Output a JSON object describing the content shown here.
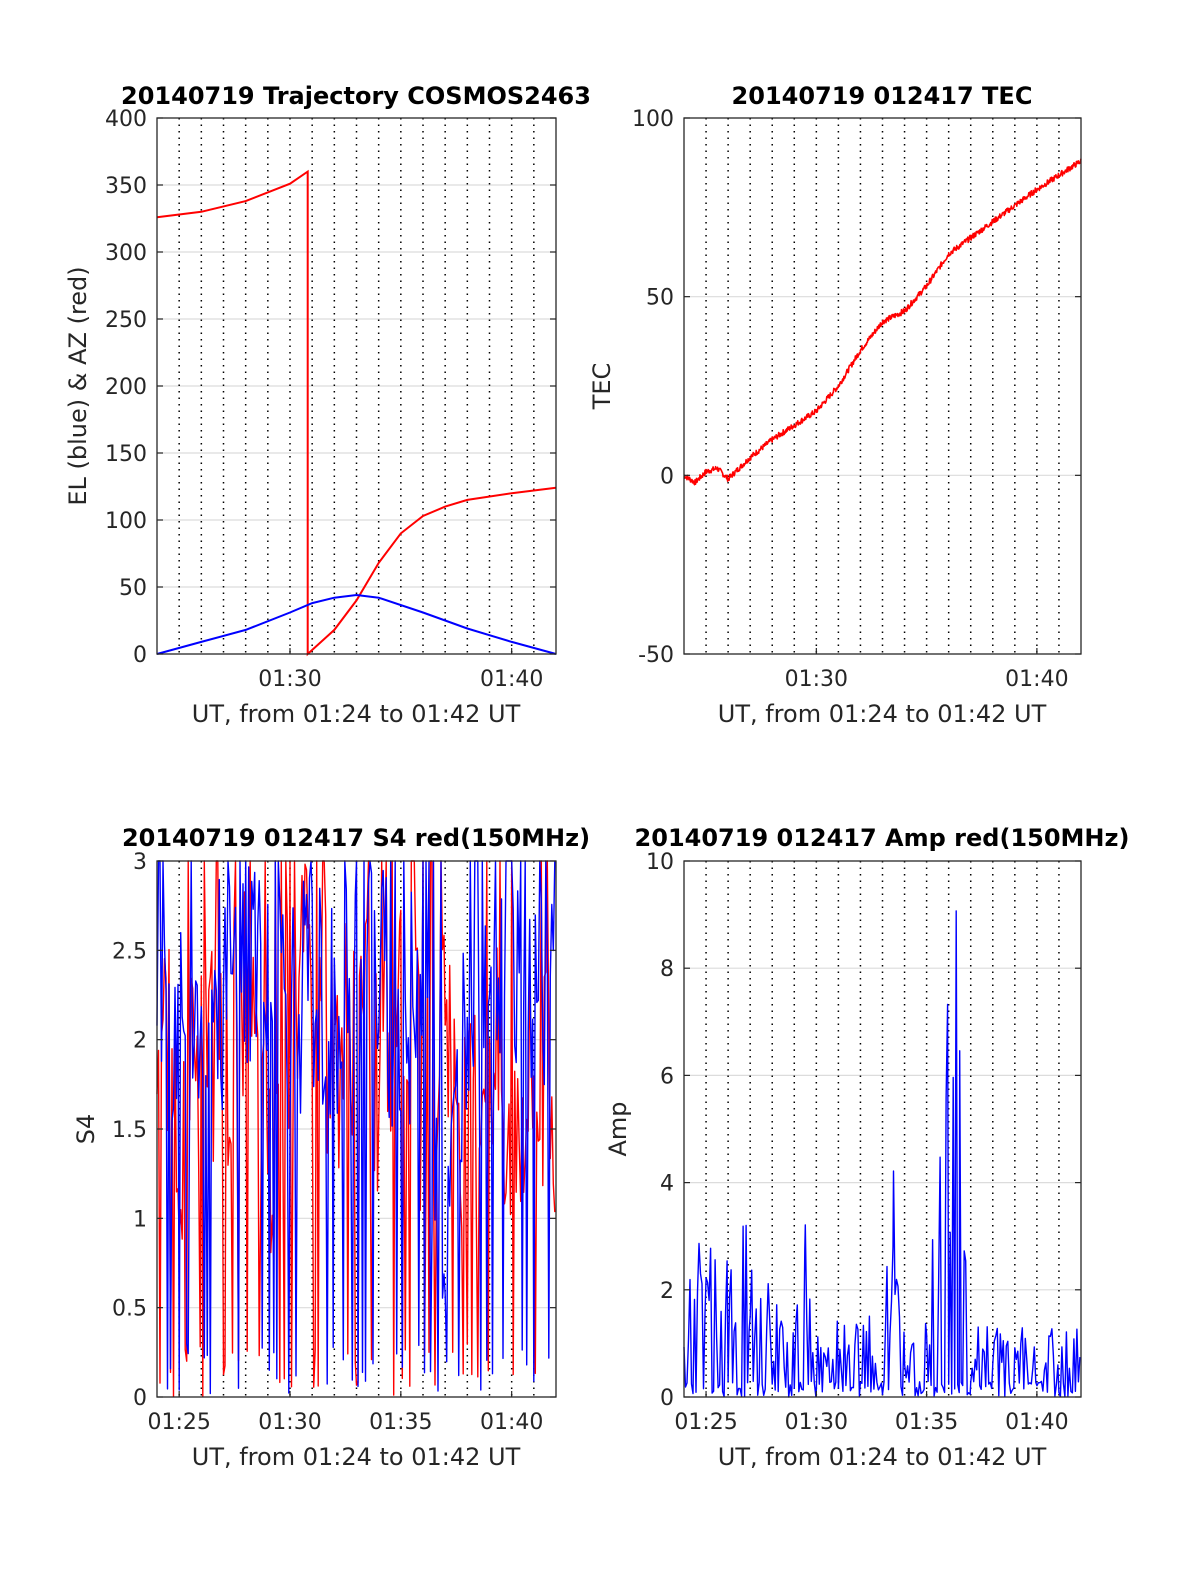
{
  "chart_data": [
    {
      "type": "line",
      "title": "20140719 Trajectory COSMOS2463",
      "xlabel": "UT, from 01:24 to 01:42 UT",
      "ylabel": "EL (blue) & AZ (red)",
      "xlim": [
        "01:24",
        "01:42"
      ],
      "ylim": [
        0,
        400
      ],
      "xticks": [
        "01:30",
        "01:40"
      ],
      "yticks": [
        "0",
        "50",
        "100",
        "150",
        "200",
        "250",
        "300",
        "350",
        "400"
      ],
      "grid": "horizontal solid, vertical dotted",
      "series": [
        {
          "color": "#ff0000",
          "x": [
            "01:24",
            "01:26",
            "01:28",
            "01:30",
            "01:30.8",
            "01:30.8",
            "01:32",
            "01:33",
            "01:34",
            "01:35",
            "01:36",
            "01:37",
            "01:38",
            "01:40",
            "01:42"
          ],
          "values": [
            326,
            330,
            338,
            351,
            360,
            0,
            18,
            40,
            68,
            90,
            103,
            110,
            115,
            120,
            124
          ]
        },
        {
          "color": "#0000ff",
          "x": [
            "01:24",
            "01:26",
            "01:28",
            "01:30",
            "01:31",
            "01:32",
            "01:33",
            "01:34",
            "01:36",
            "01:38",
            "01:40",
            "01:42"
          ],
          "values": [
            0,
            9,
            18,
            31,
            38,
            42,
            44,
            42,
            31,
            19,
            9,
            0
          ]
        }
      ]
    },
    {
      "type": "line",
      "title": "20140719 012417 TEC",
      "xlabel": "UT, from 01:24 to 01:42 UT",
      "ylabel": "TEC",
      "xlim": [
        "01:24",
        "01:42"
      ],
      "ylim": [
        -50,
        100
      ],
      "xticks": [
        "01:30",
        "01:40"
      ],
      "yticks": [
        "-50",
        "0",
        "50",
        "100"
      ],
      "grid": "horizontal solid, vertical dotted",
      "series": [
        {
          "color": "#ff0000",
          "x": [
            "01:24",
            "01:24.5",
            "01:25",
            "01:25.5",
            "01:26",
            "01:27",
            "01:28",
            "01:29",
            "01:30",
            "01:31",
            "01:32",
            "01:33",
            "01:34",
            "01:35",
            "01:36",
            "01:38",
            "01:40",
            "01:42"
          ],
          "values": [
            0,
            -2,
            1,
            2,
            -1,
            5,
            10,
            14,
            18,
            25,
            35,
            43,
            46,
            53,
            62,
            71,
            80,
            88
          ]
        }
      ]
    },
    {
      "type": "line",
      "title": "20140719 012417 S4 red(150MHz)",
      "xlabel": "UT, from 01:24 to 01:42 UT",
      "ylabel": "S4",
      "xlim": [
        "01:24",
        "01:42"
      ],
      "ylim": [
        0,
        3
      ],
      "xticks": [
        "01:25",
        "01:30",
        "01:35",
        "01:40"
      ],
      "yticks": [
        "0",
        "0.5",
        "1",
        "1.5",
        "2",
        "2.5",
        "3"
      ],
      "grid": "horizontal solid, vertical dotted",
      "series": [
        {
          "color": "#ff0000",
          "x": [
            "01:24",
            "01:25",
            "01:26",
            "01:27",
            "01:28",
            "01:29",
            "01:30",
            "01:31",
            "01:32",
            "01:33",
            "01:34",
            "01:35",
            "01:36",
            "01:37",
            "01:38",
            "01:39",
            "01:40",
            "01:41",
            "01:42"
          ],
          "values": [
            2.2,
            1.5,
            2.0,
            1.8,
            2.3,
            1.2,
            2.1,
            2.4,
            1.9,
            2.2,
            1.8,
            2.5,
            1.6,
            2.3,
            1.4,
            2.0,
            1.5,
            1.8,
            1.6
          ]
        },
        {
          "color": "#0000ff",
          "x": [
            "01:24",
            "01:25",
            "01:26",
            "01:27",
            "01:28",
            "01:29",
            "01:30",
            "01:31",
            "01:32",
            "01:33",
            "01:34",
            "01:35",
            "01:36",
            "01:37",
            "01:38",
            "01:39",
            "01:40",
            "01:41",
            "01:42"
          ],
          "values": [
            2.3,
            2.1,
            2.4,
            2.2,
            2.5,
            2.6,
            2.2,
            2.3,
            2.1,
            2.2,
            2.4,
            2.0,
            2.3,
            0.6,
            2.4,
            2.5,
            2.6,
            2.4,
            2.5
          ]
        }
      ]
    },
    {
      "type": "line",
      "title": "20140719 012417 Amp red(150MHz)",
      "xlabel": "UT, from 01:24 to 01:42 UT",
      "ylabel": "Amp",
      "xlim": [
        "01:24",
        "01:42"
      ],
      "ylim": [
        0,
        10
      ],
      "xticks": [
        "01:25",
        "01:30",
        "01:35",
        "01:40"
      ],
      "yticks": [
        "0",
        "2",
        "4",
        "6",
        "8",
        "10"
      ],
      "grid": "horizontal solid, vertical dotted",
      "series": [
        {
          "color": "#0000ff",
          "x": [
            "01:24",
            "01:25",
            "01:26",
            "01:27",
            "01:28",
            "01:29",
            "01:29.5",
            "01:30",
            "01:31",
            "01:32",
            "01:33",
            "01:33.5",
            "01:34",
            "01:35",
            "01:36",
            "01:36.5",
            "01:37",
            "01:38",
            "01:39",
            "01:40",
            "01:41",
            "01:42"
          ],
          "values": [
            1.9,
            3.0,
            2.3,
            3.2,
            1.7,
            1.2,
            3.0,
            1.0,
            1.3,
            1.6,
            1.1,
            3.9,
            1.0,
            1.3,
            7.8,
            8.7,
            1.2,
            1.3,
            1.2,
            1.3,
            1.1,
            1.4
          ]
        }
      ]
    }
  ]
}
